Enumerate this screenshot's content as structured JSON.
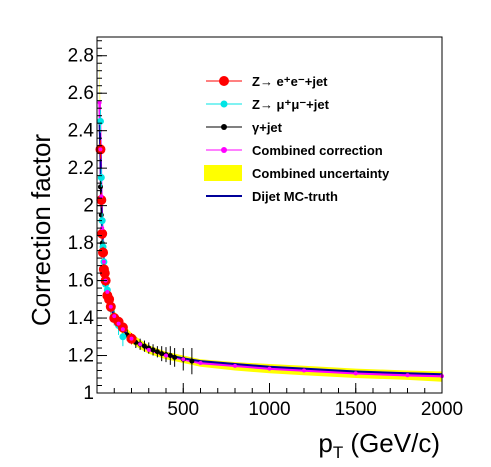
{
  "chart_data": {
    "type": "scatter",
    "title": "",
    "xlabel": "p_T (GeV/c)",
    "xlabel_main": "p",
    "xlabel_sub": "T",
    "xlabel_rest": " (GeV/c)",
    "ylabel": "Correction factor",
    "xlim": [
      0,
      2000
    ],
    "ylim": [
      1.0,
      2.9
    ],
    "x_ticks": [
      500,
      1000,
      1500,
      2000
    ],
    "x_tick_labels": [
      "500",
      "1000",
      "1500",
      "2000"
    ],
    "y_ticks": [
      1,
      1.2,
      1.4,
      1.6,
      1.8,
      2,
      2.2,
      2.4,
      2.6,
      2.8
    ],
    "y_tick_labels": [
      "1",
      "1.2",
      "1.4",
      "1.6",
      "1.8",
      "2",
      "2.2",
      "2.4",
      "2.6",
      "2.8"
    ],
    "grid": false,
    "legend_position": "top-right",
    "legend": [
      {
        "label": "Z→ e⁺e⁻+jet",
        "color": "#ff0000",
        "marker": "circle"
      },
      {
        "label": "Z→ μ⁺μ⁻+jet",
        "color": "#00e5e5",
        "marker": "circle"
      },
      {
        "label": "γ+jet",
        "color": "#000000",
        "marker": "circle"
      },
      {
        "label": "Combined correction",
        "color": "#ff00ff",
        "marker": "line-circle"
      },
      {
        "label": "Combined uncertainty",
        "color": "#ffff00",
        "marker": "box"
      },
      {
        "label": "Dijet MC-truth",
        "color": "#000099",
        "marker": "line"
      }
    ],
    "series": [
      {
        "name": "Z→ e⁺e⁻+jet",
        "color": "#ff0000",
        "x": [
          20,
          25,
          30,
          35,
          40,
          45,
          50,
          60,
          70,
          80,
          100,
          125,
          150,
          200
        ],
        "y": [
          2.3,
          2.03,
          1.85,
          1.75,
          1.66,
          1.64,
          1.6,
          1.52,
          1.5,
          1.46,
          1.4,
          1.38,
          1.35,
          1.29
        ],
        "yerr": [
          0.05,
          0.04,
          0.03,
          0.03,
          0.03,
          0.03,
          0.03,
          0.03,
          0.03,
          0.03,
          0.03,
          0.03,
          0.03,
          0.03
        ]
      },
      {
        "name": "Z→ μ⁺μ⁻+jet",
        "color": "#00e5e5",
        "x": [
          20,
          25,
          30,
          35,
          40,
          45,
          50,
          60,
          70,
          80,
          100,
          125,
          150
        ],
        "y": [
          2.45,
          2.15,
          1.92,
          1.78,
          1.7,
          1.6,
          1.58,
          1.55,
          1.5,
          1.45,
          1.4,
          1.36,
          1.3
        ],
        "yerr": [
          0.06,
          0.05,
          0.04,
          0.04,
          0.03,
          0.03,
          0.03,
          0.03,
          0.03,
          0.04,
          0.04,
          0.05,
          0.05
        ]
      },
      {
        "name": "γ+jet",
        "color": "#000000",
        "x": [
          20,
          25,
          30,
          40,
          50,
          60,
          80,
          100,
          125,
          150,
          175,
          200,
          225,
          250,
          275,
          300,
          325,
          350,
          375,
          400,
          425,
          450,
          500,
          550
        ],
        "y": [
          2.1,
          1.95,
          1.8,
          1.65,
          1.58,
          1.53,
          1.47,
          1.41,
          1.37,
          1.34,
          1.31,
          1.29,
          1.27,
          1.26,
          1.25,
          1.24,
          1.23,
          1.22,
          1.21,
          1.205,
          1.2,
          1.19,
          1.18,
          1.17
        ],
        "yerr": [
          0.05,
          0.04,
          0.04,
          0.03,
          0.03,
          0.03,
          0.03,
          0.03,
          0.03,
          0.03,
          0.03,
          0.03,
          0.03,
          0.03,
          0.03,
          0.03,
          0.03,
          0.03,
          0.04,
          0.04,
          0.05,
          0.05,
          0.06,
          0.07
        ]
      },
      {
        "name": "Combined correction",
        "color": "#ff00ff",
        "x": [
          15,
          20,
          25,
          30,
          40,
          50,
          60,
          80,
          100,
          125,
          150,
          200,
          250,
          300,
          400,
          500,
          600,
          800,
          1000,
          1200,
          1500,
          1800,
          2000
        ],
        "y": [
          2.55,
          2.3,
          2.05,
          1.88,
          1.7,
          1.6,
          1.54,
          1.46,
          1.41,
          1.37,
          1.34,
          1.29,
          1.26,
          1.23,
          1.2,
          1.18,
          1.16,
          1.145,
          1.13,
          1.12,
          1.105,
          1.095,
          1.09
        ]
      },
      {
        "name": "Combined uncertainty",
        "color": "#ffff00",
        "x": [
          15,
          20,
          25,
          30,
          40,
          50,
          60,
          80,
          100,
          125,
          150,
          200,
          250,
          300,
          400,
          500,
          600,
          800,
          1000,
          1200,
          1500,
          1800,
          2000
        ],
        "y_low": [
          2.35,
          2.2,
          1.98,
          1.82,
          1.65,
          1.56,
          1.5,
          1.43,
          1.38,
          1.34,
          1.31,
          1.265,
          1.235,
          1.21,
          1.18,
          1.16,
          1.14,
          1.12,
          1.105,
          1.095,
          1.08,
          1.07,
          1.06
        ],
        "y_high": [
          2.8,
          2.45,
          2.15,
          1.96,
          1.76,
          1.65,
          1.58,
          1.5,
          1.44,
          1.4,
          1.37,
          1.32,
          1.285,
          1.255,
          1.22,
          1.2,
          1.18,
          1.165,
          1.155,
          1.145,
          1.13,
          1.12,
          1.115
        ]
      },
      {
        "name": "Dijet MC-truth",
        "color": "#000099",
        "x": [
          15,
          20,
          25,
          30,
          40,
          50,
          60,
          80,
          100,
          125,
          150,
          200,
          250,
          300,
          400,
          500,
          600,
          800,
          1000,
          1200,
          1500,
          1800,
          2000
        ],
        "y": [
          2.45,
          2.25,
          2.02,
          1.86,
          1.69,
          1.59,
          1.53,
          1.46,
          1.41,
          1.37,
          1.335,
          1.29,
          1.26,
          1.235,
          1.205,
          1.185,
          1.17,
          1.155,
          1.14,
          1.13,
          1.115,
          1.105,
          1.1
        ]
      }
    ]
  }
}
